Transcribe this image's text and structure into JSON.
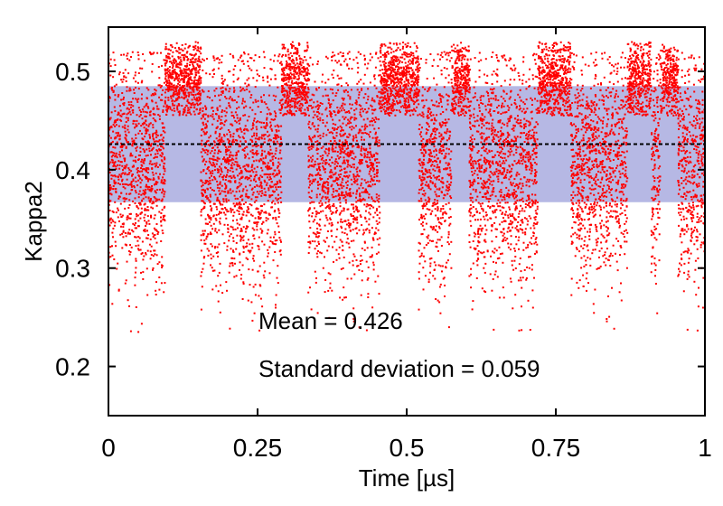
{
  "chart_data": {
    "type": "scatter",
    "xlabel": "Time [µs]",
    "ylabel": "Kappa2",
    "xlim": [
      0,
      1
    ],
    "ylim": [
      0.15,
      0.545
    ],
    "x_ticks": [
      {
        "value": 0,
        "label": "0"
      },
      {
        "value": 0.25,
        "label": "0.25"
      },
      {
        "value": 0.5,
        "label": "0.5"
      },
      {
        "value": 0.75,
        "label": "0.75"
      },
      {
        "value": 1,
        "label": "1"
      }
    ],
    "y_ticks": [
      {
        "value": 0.2,
        "label": "0.2"
      },
      {
        "value": 0.3,
        "label": "0.3"
      },
      {
        "value": 0.4,
        "label": "0.4"
      },
      {
        "value": 0.5,
        "label": "0.5"
      }
    ],
    "mean": 0.426,
    "std": 0.059,
    "band": [
      0.367,
      0.485
    ],
    "colors": {
      "points": "#ff0000",
      "band": "#b6b8e4",
      "mean_line": "#000000"
    },
    "annotations": {
      "mean_text": "Mean = 0.426",
      "std_text": "Standard deviation = 0.059"
    },
    "legend": "none",
    "grid": false,
    "state_segments": [
      {
        "x_start": 0.0,
        "x_end": 0.095,
        "state": "low"
      },
      {
        "x_start": 0.095,
        "x_end": 0.155,
        "state": "high"
      },
      {
        "x_start": 0.155,
        "x_end": 0.29,
        "state": "low"
      },
      {
        "x_start": 0.29,
        "x_end": 0.335,
        "state": "high"
      },
      {
        "x_start": 0.335,
        "x_end": 0.455,
        "state": "low"
      },
      {
        "x_start": 0.455,
        "x_end": 0.52,
        "state": "high"
      },
      {
        "x_start": 0.52,
        "x_end": 0.575,
        "state": "low"
      },
      {
        "x_start": 0.575,
        "x_end": 0.605,
        "state": "high"
      },
      {
        "x_start": 0.605,
        "x_end": 0.72,
        "state": "low"
      },
      {
        "x_start": 0.72,
        "x_end": 0.775,
        "state": "high"
      },
      {
        "x_start": 0.775,
        "x_end": 0.87,
        "state": "low"
      },
      {
        "x_start": 0.87,
        "x_end": 0.91,
        "state": "high"
      },
      {
        "x_start": 0.91,
        "x_end": 0.925,
        "state": "low"
      },
      {
        "x_start": 0.925,
        "x_end": 0.955,
        "state": "high"
      },
      {
        "x_start": 0.955,
        "x_end": 1.0,
        "state": "low"
      }
    ],
    "state_ranges": {
      "high": {
        "center": 0.49,
        "spread": 0.02,
        "min": 0.455,
        "max": 0.53
      },
      "low": {
        "center": 0.4,
        "spread": 0.055,
        "min": 0.235,
        "max": 0.52
      }
    }
  }
}
